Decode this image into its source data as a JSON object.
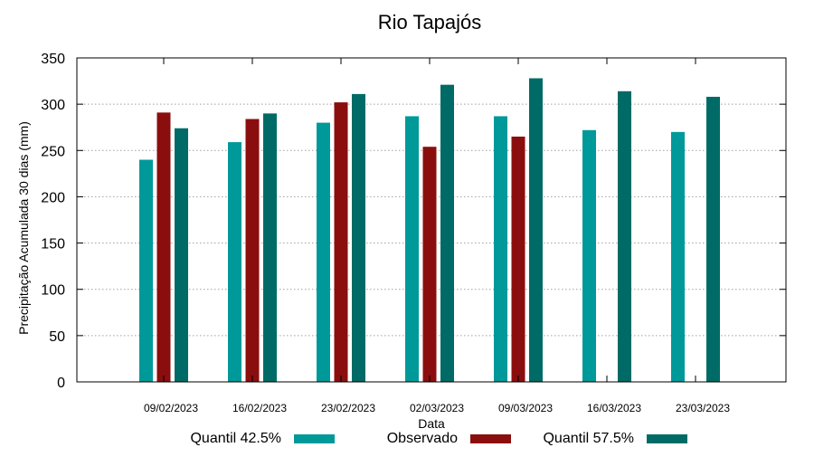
{
  "chart_data": {
    "type": "bar",
    "title": "Rio Tapajós",
    "xlabel": "Data",
    "ylabel": "Precipitação Acumulada 30 dias (mm)",
    "ylim": [
      0,
      350
    ],
    "yticks": [
      0,
      50,
      100,
      150,
      200,
      250,
      300,
      350
    ],
    "grid": true,
    "legend_position": "bottom",
    "categories": [
      "09/02/2023",
      "16/02/2023",
      "23/02/2023",
      "02/03/2023",
      "09/03/2023",
      "16/03/2023",
      "23/03/2023"
    ],
    "series": [
      {
        "name": "Quantil 42.5%",
        "color": "#009999",
        "values": [
          240,
          259,
          280,
          287,
          287,
          272,
          270
        ]
      },
      {
        "name": "Observado",
        "color": "#8b0e0e",
        "values": [
          291,
          284,
          302,
          254,
          265,
          null,
          null
        ]
      },
      {
        "name": "Quantil 57.5%",
        "color": "#006b66",
        "values": [
          274,
          290,
          311,
          321,
          328,
          314,
          308
        ]
      }
    ]
  }
}
